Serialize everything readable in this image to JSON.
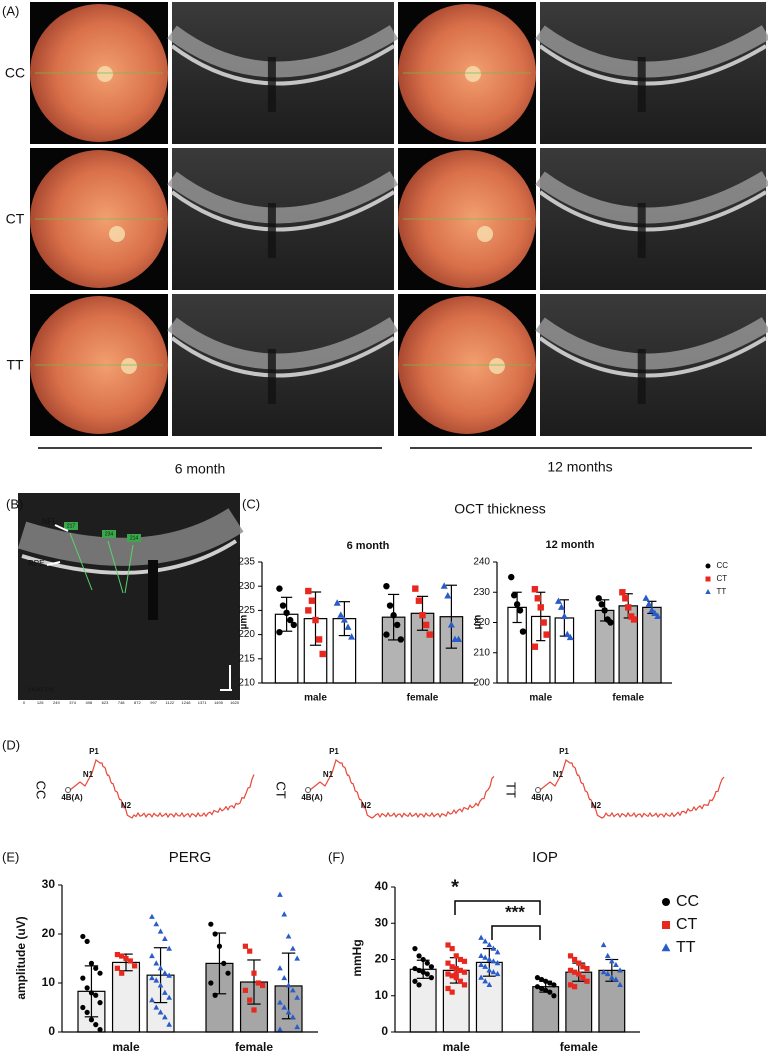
{
  "figure": {
    "A": {
      "label": "(A)",
      "rows": [
        "CC",
        "CT",
        "TT"
      ],
      "periods": [
        "6 month",
        "12 months"
      ]
    },
    "B": {
      "label": "(B)",
      "layers": [
        "NFL",
        "RPE"
      ],
      "measures": [
        "217",
        "234",
        "214"
      ],
      "eye": "RIGHT EYE",
      "xticks": [
        "0",
        "125",
        "249",
        "374",
        "498",
        "623",
        "748",
        "872",
        "997",
        "1122",
        "1246",
        "1371",
        "1495",
        "1620"
      ]
    },
    "C": {
      "label": "(C)",
      "title": "OCT thickness"
    },
    "D": {
      "label": "(D)",
      "rows": [
        "CC",
        "CT",
        "TT"
      ],
      "peaks": [
        "P1",
        "N1",
        "N2"
      ],
      "marker": "4B(A)"
    },
    "E": {
      "label": "(E)"
    },
    "F": {
      "label": "(F)",
      "annotations": [
        "*",
        "***"
      ]
    }
  },
  "chart_data": [
    {
      "type": "bar",
      "title": "6 month",
      "ylabel": "µm",
      "categories": [
        "male",
        "female"
      ],
      "ylim": [
        210,
        235
      ],
      "yticks": [
        210,
        215,
        220,
        225,
        230,
        235
      ],
      "bar_fills": [
        "#ffffff",
        "#b3b3b3"
      ],
      "legend": false,
      "series": [
        {
          "color": "#000000",
          "marker": "circle",
          "values": [
            224.2,
            223.6
          ],
          "errors": [
            3.5,
            4.7
          ],
          "points": [
            [
              229.5,
              226,
              224.5,
              223,
              222,
              220.5
            ],
            [
              230,
              226,
              224,
              222,
              219,
              220
            ]
          ]
        },
        {
          "color": "#e8281f",
          "marker": "square",
          "values": [
            223.3,
            224.4
          ],
          "errors": [
            5.5,
            3.5
          ],
          "points": [
            [
              229,
              227,
              223,
              219,
              216,
              225
            ],
            [
              229.5,
              227,
              224,
              222,
              220
            ]
          ]
        },
        {
          "color": "#2a5cc9",
          "marker": "triangle",
          "values": [
            223.3,
            223.7
          ],
          "errors": [
            3.5,
            6.5
          ],
          "points": [
            [
              226.5,
              224,
              223,
              221.5,
              219.5
            ],
            [
              230,
              228,
              222,
              219,
              219
            ]
          ]
        }
      ]
    },
    {
      "type": "bar",
      "title": "12 month",
      "ylabel": "µm",
      "categories": [
        "male",
        "female"
      ],
      "ylim": [
        200,
        240
      ],
      "yticks": [
        200,
        210,
        220,
        230,
        240
      ],
      "bar_fills": [
        "#ffffff",
        "#b3b3b3"
      ],
      "legend": true,
      "series": [
        {
          "name": "CC",
          "color": "#000000",
          "marker": "circle",
          "values": [
            225,
            224
          ],
          "errors": [
            5,
            3.5
          ],
          "points": [
            [
              235,
              229,
              226,
              224,
              217
            ],
            [
              228,
              226,
              224,
              221,
              220
            ]
          ]
        },
        {
          "name": "CT",
          "color": "#e8281f",
          "marker": "square",
          "values": [
            222,
            225.5
          ],
          "errors": [
            8,
            4
          ],
          "points": [
            [
              231,
              228,
              225,
              220,
              216,
              212
            ],
            [
              230,
              228,
              225,
              222,
              221
            ]
          ]
        },
        {
          "name": "TT",
          "color": "#2a5cc9",
          "marker": "triangle",
          "values": [
            221.5,
            225
          ],
          "errors": [
            6,
            2
          ],
          "points": [
            [
              227,
              225,
              222,
              216,
              215
            ],
            [
              228,
              226,
              224,
              223,
              222
            ]
          ]
        }
      ]
    },
    {
      "type": "bar",
      "title": "PERG",
      "ylabel": "amplitude (uV)",
      "categories": [
        "male",
        "female"
      ],
      "ylim": [
        0,
        30
      ],
      "yticks": [
        0,
        10,
        20,
        30
      ],
      "bar_fills": [
        "#eeeeee",
        "#a6a6a6"
      ],
      "legend": false,
      "series": [
        {
          "color": "#000000",
          "marker": "circle",
          "values": [
            8.3,
            14.0
          ],
          "errors": [
            5.2,
            6.2
          ],
          "points": [
            [
              19.5,
              18.5,
              14,
              13,
              12,
              11,
              9,
              8,
              7.5,
              6,
              5,
              4,
              2.5,
              1.5,
              0.5
            ],
            [
              22,
              20,
              17.5,
              14,
              12,
              10,
              7.5
            ]
          ]
        },
        {
          "color": "#e8281f",
          "marker": "square",
          "values": [
            14.2,
            10.2
          ],
          "errors": [
            1.7,
            4.5
          ],
          "points": [
            [
              15.8,
              15.5,
              15,
              14.5,
              13.5,
              13,
              12
            ],
            [
              17.5,
              16.5,
              12,
              10,
              9.5,
              8.5,
              6.5,
              4.5
            ]
          ]
        },
        {
          "color": "#2a5cc9",
          "marker": "triangle",
          "values": [
            11.6,
            9.4
          ],
          "errors": [
            5.6,
            6.7
          ],
          "points": [
            [
              23.5,
              22,
              20.5,
              19,
              17,
              15.5,
              14,
              13,
              12,
              11.5,
              11,
              10.5,
              9.5,
              8,
              7,
              6.5,
              5,
              4,
              3,
              1.5
            ],
            [
              28,
              24,
              19.5,
              17,
              15,
              13,
              11,
              9.5,
              8.5,
              7,
              6,
              5,
              4,
              3,
              1,
              0.5
            ]
          ]
        }
      ]
    },
    {
      "type": "bar",
      "title": "IOP",
      "ylabel": "mmHg",
      "categories": [
        "male",
        "female"
      ],
      "ylim": [
        0,
        40
      ],
      "yticks": [
        0,
        10,
        20,
        30,
        40
      ],
      "bar_fills": [
        "#eeeeee",
        "#a6a6a6"
      ],
      "legend": true,
      "series": [
        {
          "name": "CC",
          "color": "#000000",
          "marker": "circle",
          "values": [
            17.3,
            12.5
          ],
          "errors": [
            2.5,
            1.5
          ],
          "points": [
            [
              23,
              21,
              20,
              19,
              18,
              17.5,
              17,
              16.5,
              16,
              15,
              14,
              13
            ],
            [
              15,
              14.5,
              14,
              13.5,
              13,
              12.5,
              12,
              11.5,
              11,
              10
            ]
          ]
        },
        {
          "name": "CT",
          "color": "#e8281f",
          "marker": "square",
          "values": [
            17.0,
            16.5
          ],
          "errors": [
            3.5,
            2.5
          ],
          "points": [
            [
              24,
              23,
              21,
              20,
              19.5,
              19,
              18,
              17.5,
              17,
              16.5,
              16,
              15.5,
              15,
              14,
              13,
              12,
              11,
              16
            ],
            [
              21,
              20,
              19,
              18,
              17.5,
              17,
              16.5,
              16,
              15,
              14,
              13,
              12.5
            ]
          ]
        },
        {
          "name": "TT",
          "color": "#2a5cc9",
          "marker": "triangle",
          "values": [
            19.2,
            17.0
          ],
          "errors": [
            3.8,
            3
          ],
          "points": [
            [
              26,
              25,
              24,
              23,
              22,
              21,
              20.5,
              20,
              19.5,
              19,
              18.5,
              18,
              17,
              16.5,
              16,
              15,
              14,
              13
            ],
            [
              24,
              21,
              19.5,
              18.5,
              17,
              16.5,
              16,
              15,
              14.5,
              13
            ]
          ]
        }
      ]
    }
  ]
}
